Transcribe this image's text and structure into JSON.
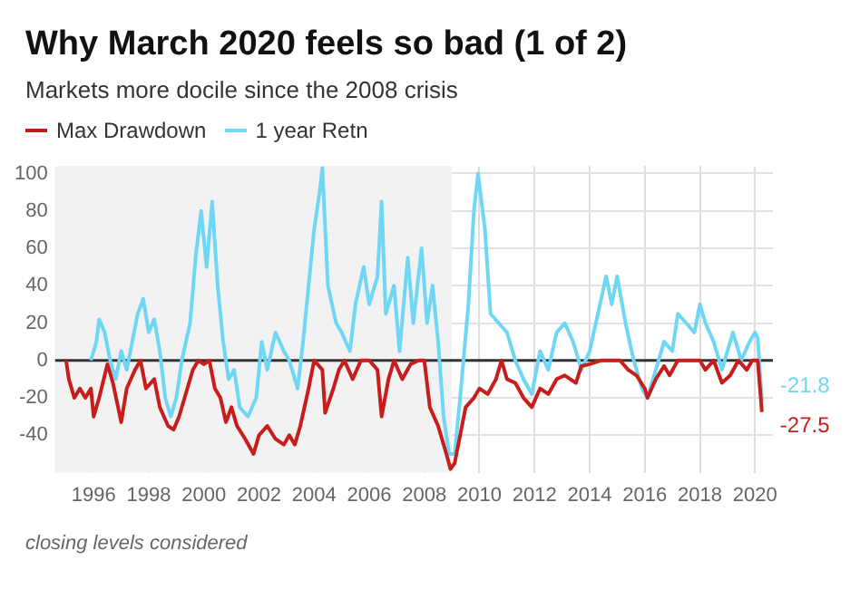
{
  "chart_data": {
    "type": "line",
    "title": "Why March 2020 feels so bad (1 of 2)",
    "subtitle": "Markets more docile since the 2008 crisis",
    "legend": "top left",
    "grid": true,
    "marker": "none",
    "line_style": "solid",
    "xlim": [
      1994.6,
      2020.65
    ],
    "xticks": [
      1996,
      1998,
      2000,
      2002,
      2004,
      2006,
      2008,
      2010,
      2012,
      2014,
      2016,
      2018,
      2020
    ],
    "ylim": [
      -60,
      104
    ],
    "yticks": [
      -40,
      -20,
      0,
      20,
      40,
      60,
      80,
      100
    ],
    "bands": [
      {
        "axis": "x",
        "from": 1994.6,
        "to": 2009.0,
        "color": "#f2f2f2"
      }
    ],
    "ref_lines": [
      {
        "axis": "y",
        "value": 0,
        "color": "#333333"
      }
    ],
    "annotations": [
      {
        "text": "-21.8",
        "x": 2020.25,
        "y": -21.8
      },
      {
        "text": "-27.5",
        "x": 2020.25,
        "y": -27.5
      },
      "closing levels considered"
    ],
    "series": [
      {
        "name": "Max Drawdown",
        "color": "#c71e1d",
        "x": [
          1995.0,
          1995.1,
          1995.3,
          1995.5,
          1995.7,
          1995.9,
          1996.0,
          1996.2,
          1996.5,
          1996.7,
          1997.0,
          1997.2,
          1997.5,
          1997.7,
          1997.9,
          1998.2,
          1998.4,
          1998.7,
          1998.9,
          1999.1,
          1999.4,
          1999.6,
          1999.8,
          2000.0,
          2000.2,
          2000.4,
          2000.6,
          2000.8,
          2001.0,
          2001.2,
          2001.5,
          2001.8,
          2002.0,
          2002.3,
          2002.6,
          2002.9,
          2003.1,
          2003.3,
          2003.5,
          2003.8,
          2004.0,
          2004.3,
          2004.4,
          2004.7,
          2004.9,
          2005.1,
          2005.4,
          2005.7,
          2006.0,
          2006.3,
          2006.45,
          2006.7,
          2006.9,
          2007.2,
          2007.5,
          2007.8,
          2008.0,
          2008.2,
          2008.5,
          2008.8,
          2008.95,
          2009.1,
          2009.3,
          2009.5,
          2009.8,
          2010.0,
          2010.3,
          2010.6,
          2010.8,
          2011.0,
          2011.3,
          2011.6,
          2011.9,
          2012.2,
          2012.5,
          2012.8,
          2013.1,
          2013.5,
          2013.7,
          2014.0,
          2014.4,
          2014.8,
          2015.1,
          2015.4,
          2015.7,
          2016.0,
          2016.1,
          2016.4,
          2016.7,
          2016.9,
          2017.2,
          2017.6,
          2018.0,
          2018.2,
          2018.5,
          2018.8,
          2019.1,
          2019.4,
          2019.7,
          2019.9,
          2020.1,
          2020.25
        ],
        "values": [
          0,
          -10,
          -20,
          -15,
          -20,
          -15,
          -30,
          -20,
          -2,
          -12,
          -33,
          -15,
          -5,
          0,
          -15,
          -10,
          -25,
          -35,
          -37,
          -30,
          -15,
          -5,
          0,
          -2,
          0,
          -15,
          -20,
          -33,
          -25,
          -35,
          -42,
          -50,
          -40,
          -35,
          -42,
          -45,
          -40,
          -45,
          -35,
          -15,
          0,
          -5,
          -28,
          -15,
          -5,
          0,
          -10,
          0,
          0,
          -5,
          -30,
          -10,
          0,
          -10,
          -2,
          0,
          0,
          -25,
          -35,
          -50,
          -58,
          -55,
          -40,
          -25,
          -20,
          -15,
          -18,
          -10,
          0,
          -10,
          -12,
          -20,
          -25,
          -15,
          -18,
          -10,
          -8,
          -12,
          -3,
          -2,
          0,
          0,
          0,
          -5,
          -8,
          -15,
          -20,
          -10,
          -3,
          -8,
          0,
          0,
          0,
          -5,
          0,
          -12,
          -8,
          0,
          -5,
          0,
          0,
          -27.5
        ]
      },
      {
        "name": "1 year Retn",
        "color": "#6fd7f5",
        "x": [
          1995.9,
          1996.1,
          1996.2,
          1996.4,
          1996.6,
          1996.8,
          1997.0,
          1997.2,
          1997.4,
          1997.6,
          1997.8,
          1998.0,
          1998.2,
          1998.4,
          1998.6,
          1998.8,
          1999.0,
          1999.2,
          1999.5,
          1999.7,
          1999.9,
          2000.1,
          2000.3,
          2000.5,
          2000.7,
          2000.9,
          2001.1,
          2001.3,
          2001.6,
          2001.9,
          2002.1,
          2002.3,
          2002.6,
          2002.9,
          2003.1,
          2003.4,
          2003.6,
          2003.8,
          2004.0,
          2004.2,
          2004.3,
          2004.5,
          2004.8,
          2005.0,
          2005.3,
          2005.5,
          2005.8,
          2006.0,
          2006.3,
          2006.45,
          2006.6,
          2006.9,
          2007.1,
          2007.4,
          2007.6,
          2007.9,
          2008.1,
          2008.3,
          2008.5,
          2008.7,
          2008.9,
          2009.1,
          2009.3,
          2009.6,
          2009.8,
          2009.95,
          2010.2,
          2010.4,
          2010.7,
          2011.0,
          2011.3,
          2011.6,
          2011.9,
          2012.2,
          2012.5,
          2012.8,
          2013.1,
          2013.4,
          2013.7,
          2014.0,
          2014.3,
          2014.6,
          2014.8,
          2015.0,
          2015.3,
          2015.6,
          2015.9,
          2016.1,
          2016.4,
          2016.7,
          2017.0,
          2017.2,
          2017.5,
          2017.8,
          2018.0,
          2018.2,
          2018.5,
          2018.8,
          2019.0,
          2019.2,
          2019.5,
          2019.8,
          2020.0,
          2020.1,
          2020.25
        ],
        "values": [
          0,
          10,
          22,
          15,
          0,
          -10,
          5,
          -5,
          10,
          25,
          33,
          15,
          22,
          5,
          -20,
          -30,
          -20,
          0,
          20,
          55,
          80,
          50,
          85,
          40,
          10,
          -10,
          -5,
          -25,
          -30,
          -20,
          10,
          -5,
          15,
          5,
          0,
          -15,
          10,
          40,
          70,
          90,
          103,
          40,
          20,
          15,
          5,
          30,
          50,
          30,
          45,
          85,
          25,
          40,
          5,
          55,
          20,
          60,
          20,
          40,
          10,
          -30,
          -50,
          -50,
          -20,
          30,
          80,
          100,
          70,
          25,
          20,
          15,
          0,
          -10,
          -18,
          5,
          -5,
          15,
          20,
          10,
          -5,
          5,
          25,
          45,
          30,
          45,
          20,
          0,
          -15,
          -20,
          -5,
          10,
          5,
          25,
          20,
          15,
          30,
          20,
          10,
          -5,
          5,
          15,
          0,
          10,
          15,
          12,
          -21.8
        ]
      }
    ]
  }
}
